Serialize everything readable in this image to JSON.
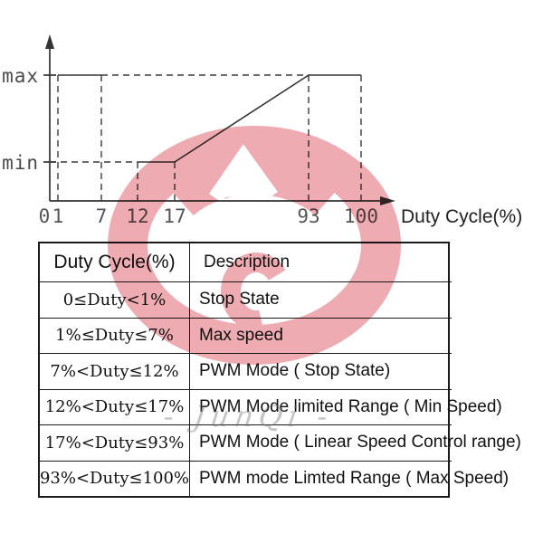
{
  "watermark": {
    "brand_text": "- JunQi -",
    "logo_color": "#eeacb2"
  },
  "chart_data": [
    {
      "type": "line",
      "title": "",
      "xlabel": "Duty Cycle(%)",
      "ylabel": "",
      "xlim": [
        0,
        100
      ],
      "x_ticks": [
        0,
        1,
        7,
        12,
        17,
        93,
        100
      ],
      "y_tick_labels": [
        "max",
        "min"
      ],
      "grid": "dashed construction guides only",
      "segments": [
        {
          "x1": 1,
          "y1": "max",
          "x2": 7,
          "y2": "max"
        },
        {
          "x1": 12,
          "y1": "min",
          "x2": 17,
          "y2": "min"
        },
        {
          "x1": 17,
          "y1": "min",
          "x2": 93,
          "y2": "max"
        },
        {
          "x1": 93,
          "y1": "max",
          "x2": 100,
          "y2": "max"
        }
      ],
      "dashed_vertical_guides": [
        {
          "x": 1,
          "level": "max"
        },
        {
          "x": 7,
          "level": "max"
        },
        {
          "x": 12,
          "level": "min"
        },
        {
          "x": 17,
          "level": "min"
        },
        {
          "x": 93,
          "level": "max"
        },
        {
          "x": 100,
          "level": "max"
        }
      ],
      "dashed_horizontal_guides": [
        {
          "level": "max",
          "from": 7,
          "to": 93
        },
        {
          "level": "min",
          "from": 0,
          "to": 12
        }
      ]
    },
    {
      "type": "table",
      "columns": [
        "Duty Cycle(%)",
        "Description"
      ],
      "rows": [
        [
          "0≤Duty<1%",
          "Stop State"
        ],
        [
          "1%≤Duty≤7%",
          "Max speed"
        ],
        [
          "7%<Duty≤12%",
          "PWM Mode ( Stop State)"
        ],
        [
          "12%<Duty≤17%",
          "PWM Mode limited Range ( Min Speed)"
        ],
        [
          "17%<Duty≤93%",
          "PWM Mode ( Linear Speed Control range)"
        ],
        [
          "93%<Duty≤100%",
          "PWM mode Limted Range ( Max Speed)"
        ]
      ]
    }
  ]
}
